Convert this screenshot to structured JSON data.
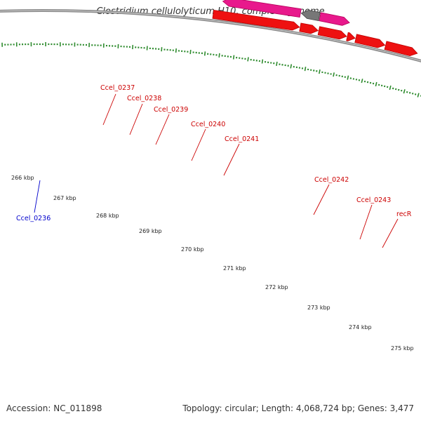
{
  "title": "Clostridium cellulolyticum H10, complete genome",
  "footer": {
    "accession": "Accession: NC_011898",
    "summary": "Topology: circular; Length: 4,068,724 bp; Genes: 3,477"
  },
  "colors": {
    "forward_gene": "#ee1111",
    "reverse_gene": "#1a24e8",
    "rrna_like": "#e8198c",
    "pseudo": "#777777",
    "dark_purple": "#4a3e86",
    "purple": "#5b4fa8",
    "orange": "#f5900c",
    "backbone": "#8a8a8a",
    "tick": "#2e8b2e",
    "forward_label": "#cc0000",
    "reverse_label": "#0000cc"
  },
  "tick_labels": [
    "266 kbp",
    "267 kbp",
    "268 kbp",
    "269 kbp",
    "270 kbp",
    "271 kbp",
    "272 kbp",
    "273 kbp",
    "274 kbp",
    "275 kbp"
  ],
  "gene_labels": [
    {
      "text": "Ccel_0236",
      "strand": "reverse"
    },
    {
      "text": "Ccel_0237",
      "strand": "forward"
    },
    {
      "text": "Ccel_0238",
      "strand": "forward"
    },
    {
      "text": "Ccel_0239",
      "strand": "forward"
    },
    {
      "text": "Ccel_0240",
      "strand": "forward"
    },
    {
      "text": "Ccel_0241",
      "strand": "forward"
    },
    {
      "text": "Ccel_0242",
      "strand": "forward"
    },
    {
      "text": "Ccel_0243",
      "strand": "forward"
    },
    {
      "text": "recR",
      "strand": "forward"
    }
  ]
}
